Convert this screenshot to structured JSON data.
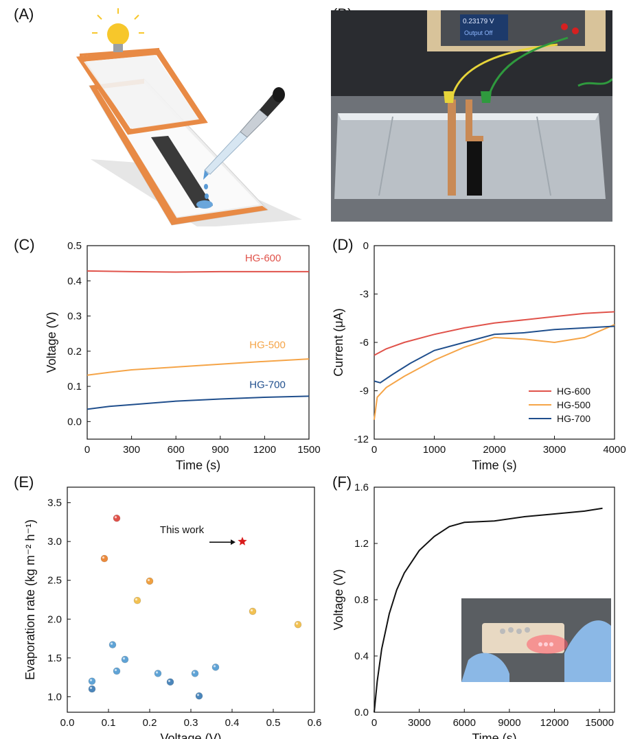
{
  "panels": {
    "a": "(A)",
    "b": "(B)",
    "c": "(C)",
    "d": "(D)",
    "e": "(E)",
    "f": "(F)"
  },
  "photo_b": {
    "display_voltage": "0.23179 V",
    "display_status": "Output Off"
  },
  "colors": {
    "hg600": "#e0524a",
    "hg500": "#f5a447",
    "hg700": "#1f4e8c",
    "copper": "#e88a45",
    "black": "#111111"
  },
  "chart_data": [
    {
      "id": "C",
      "type": "line",
      "xlabel": "Time (s)",
      "ylabel": "Voltage (V)",
      "xlim": [
        0,
        1500
      ],
      "ylim": [
        -0.05,
        0.5
      ],
      "xticks": [
        "0",
        "300",
        "600",
        "900",
        "1200",
        "1500"
      ],
      "yticks": [
        "0.0",
        "0.1",
        "0.2",
        "0.3",
        "0.4",
        "0.5"
      ],
      "series": [
        {
          "name": "HG-600",
          "x": [
            0,
            300,
            600,
            900,
            1200,
            1500
          ],
          "values": [
            0.428,
            0.426,
            0.425,
            0.426,
            0.426,
            0.426
          ]
        },
        {
          "name": "HG-500",
          "x": [
            0,
            150,
            300,
            600,
            900,
            1200,
            1500
          ],
          "values": [
            0.132,
            0.14,
            0.147,
            0.155,
            0.163,
            0.171,
            0.178
          ]
        },
        {
          "name": "HG-700",
          "x": [
            0,
            150,
            300,
            600,
            900,
            1200,
            1500
          ],
          "values": [
            0.035,
            0.043,
            0.048,
            0.058,
            0.064,
            0.069,
            0.072
          ]
        }
      ]
    },
    {
      "id": "D",
      "type": "line",
      "xlabel": "Time (s)",
      "ylabel": "Current (μA)",
      "xlim": [
        0,
        4000
      ],
      "ylim": [
        -12,
        0
      ],
      "xticks": [
        "0",
        "1000",
        "2000",
        "3000",
        "4000"
      ],
      "yticks": [
        "0",
        "-3",
        "-6",
        "-9",
        "-12"
      ],
      "legend": [
        "HG-600",
        "HG-500",
        "HG-700"
      ],
      "series": [
        {
          "name": "HG-600",
          "x": [
            0,
            200,
            500,
            1000,
            1500,
            2000,
            2500,
            3000,
            3500,
            4000
          ],
          "values": [
            -6.8,
            -6.4,
            -6.0,
            -5.5,
            -5.1,
            -4.8,
            -4.6,
            -4.4,
            -4.2,
            -4.1
          ]
        },
        {
          "name": "HG-500",
          "x": [
            0,
            50,
            200,
            500,
            1000,
            1500,
            2000,
            2500,
            3000,
            3500,
            4000
          ],
          "values": [
            -10.8,
            -9.4,
            -8.8,
            -8.1,
            -7.1,
            -6.3,
            -5.7,
            -5.8,
            -6.0,
            -5.7,
            -4.9
          ]
        },
        {
          "name": "HG-700",
          "x": [
            0,
            100,
            300,
            600,
            1000,
            1500,
            2000,
            2500,
            3000,
            3500,
            4000
          ],
          "values": [
            -8.4,
            -8.5,
            -8.0,
            -7.3,
            -6.5,
            -6.0,
            -5.5,
            -5.4,
            -5.2,
            -5.1,
            -5.0
          ]
        }
      ]
    },
    {
      "id": "E",
      "type": "scatter",
      "xlabel": "Voltage (V)",
      "ylabel": "Evaporation rate (kg m⁻² h⁻¹)",
      "xlim": [
        0.0,
        0.6
      ],
      "ylim": [
        0.8,
        3.7
      ],
      "xticks": [
        "0.0",
        "0.1",
        "0.2",
        "0.3",
        "0.4",
        "0.5",
        "0.6"
      ],
      "yticks": [
        "1.0",
        "1.5",
        "2.0",
        "2.5",
        "3.0",
        "3.5"
      ],
      "annotation": "This work",
      "this_work": {
        "x": 0.425,
        "y": 3.0
      },
      "points": [
        {
          "x": 0.12,
          "y": 3.3,
          "color": "#e0524a"
        },
        {
          "x": 0.09,
          "y": 2.78,
          "color": "#ec8a3c"
        },
        {
          "x": 0.2,
          "y": 2.49,
          "color": "#f0a040"
        },
        {
          "x": 0.17,
          "y": 2.24,
          "color": "#f2c152"
        },
        {
          "x": 0.45,
          "y": 2.1,
          "color": "#f2c152"
        },
        {
          "x": 0.56,
          "y": 1.93,
          "color": "#f2c152"
        },
        {
          "x": 0.11,
          "y": 1.67,
          "color": "#5fa3d6"
        },
        {
          "x": 0.14,
          "y": 1.48,
          "color": "#5fa3d6"
        },
        {
          "x": 0.12,
          "y": 1.33,
          "color": "#5fa3d6"
        },
        {
          "x": 0.06,
          "y": 1.2,
          "color": "#5fa3d6"
        },
        {
          "x": 0.06,
          "y": 1.1,
          "color": "#4b86bb"
        },
        {
          "x": 0.22,
          "y": 1.3,
          "color": "#5fa3d6"
        },
        {
          "x": 0.25,
          "y": 1.19,
          "color": "#4b86bb"
        },
        {
          "x": 0.31,
          "y": 1.3,
          "color": "#5fa3d6"
        },
        {
          "x": 0.32,
          "y": 1.01,
          "color": "#4b86bb"
        },
        {
          "x": 0.36,
          "y": 1.38,
          "color": "#5fa3d6"
        }
      ]
    },
    {
      "id": "F",
      "type": "line",
      "xlabel": "Time (s)",
      "ylabel": "Voltage (V)",
      "xlim": [
        0,
        16000
      ],
      "ylim": [
        0.0,
        1.6
      ],
      "xticks": [
        "0",
        "3000",
        "6000",
        "9000",
        "12000",
        "15000"
      ],
      "yticks": [
        "0.0",
        "0.4",
        "0.8",
        "1.2",
        "1.6"
      ],
      "series": [
        {
          "name": "voltage",
          "x": [
            0,
            200,
            500,
            1000,
            1500,
            2000,
            3000,
            4000,
            5000,
            6000,
            8000,
            10000,
            12000,
            14000,
            15200
          ],
          "values": [
            0.0,
            0.22,
            0.45,
            0.7,
            0.87,
            0.99,
            1.15,
            1.25,
            1.32,
            1.35,
            1.36,
            1.39,
            1.41,
            1.43,
            1.45
          ]
        }
      ]
    }
  ]
}
